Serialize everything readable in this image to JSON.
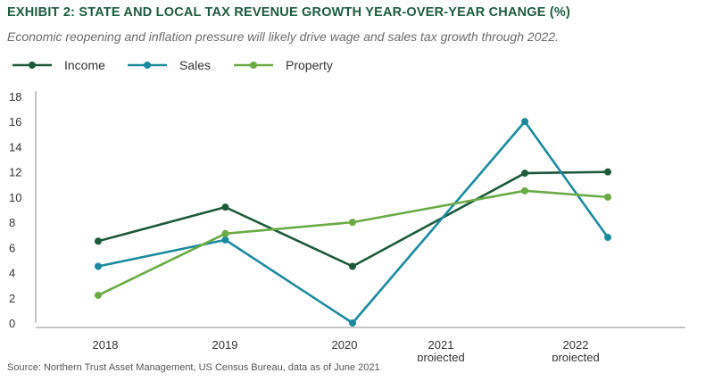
{
  "title": "EXHIBIT 2: STATE AND LOCAL TAX REVENUE GROWTH YEAR-OVER-YEAR CHANGE (%)",
  "subtitle": "Economic reopening and inflation pressure will likely drive wage and sales tax growth through 2022.",
  "source": "Source: Northern Trust Asset Management, US Census Bureau, data as of June 2021",
  "chart_data": {
    "type": "line",
    "x_categories": [
      [
        "2018"
      ],
      [
        "2019"
      ],
      [
        "2020"
      ],
      [
        "2021",
        "projected"
      ],
      [
        "2022",
        "projected"
      ]
    ],
    "y_ticks": [
      0,
      2,
      4,
      6,
      8,
      10,
      12,
      14,
      16,
      18
    ],
    "ylim": [
      0,
      18
    ],
    "grid": false,
    "legend_position": "top-left",
    "series": [
      {
        "name": "Income",
        "color": "#1d5a3c",
        "points": [
          [
            2018,
            6.5
          ],
          [
            2019,
            9.2
          ],
          [
            2020,
            4.5
          ],
          [
            2021.35,
            11.9
          ],
          [
            2022,
            12.0
          ]
        ]
      },
      {
        "name": "Sales",
        "color": "#1b8a9e",
        "points": [
          [
            2018,
            4.5
          ],
          [
            2019,
            6.6
          ],
          [
            2020,
            0.0
          ],
          [
            2021.35,
            16.0
          ],
          [
            2022,
            6.8
          ]
        ]
      },
      {
        "name": "Property",
        "color": "#6aaa45",
        "points": [
          [
            2018,
            2.2
          ],
          [
            2019,
            7.1
          ],
          [
            2020,
            8.0
          ],
          [
            2021.35,
            10.5
          ],
          [
            2022,
            10.0
          ]
        ]
      }
    ]
  }
}
